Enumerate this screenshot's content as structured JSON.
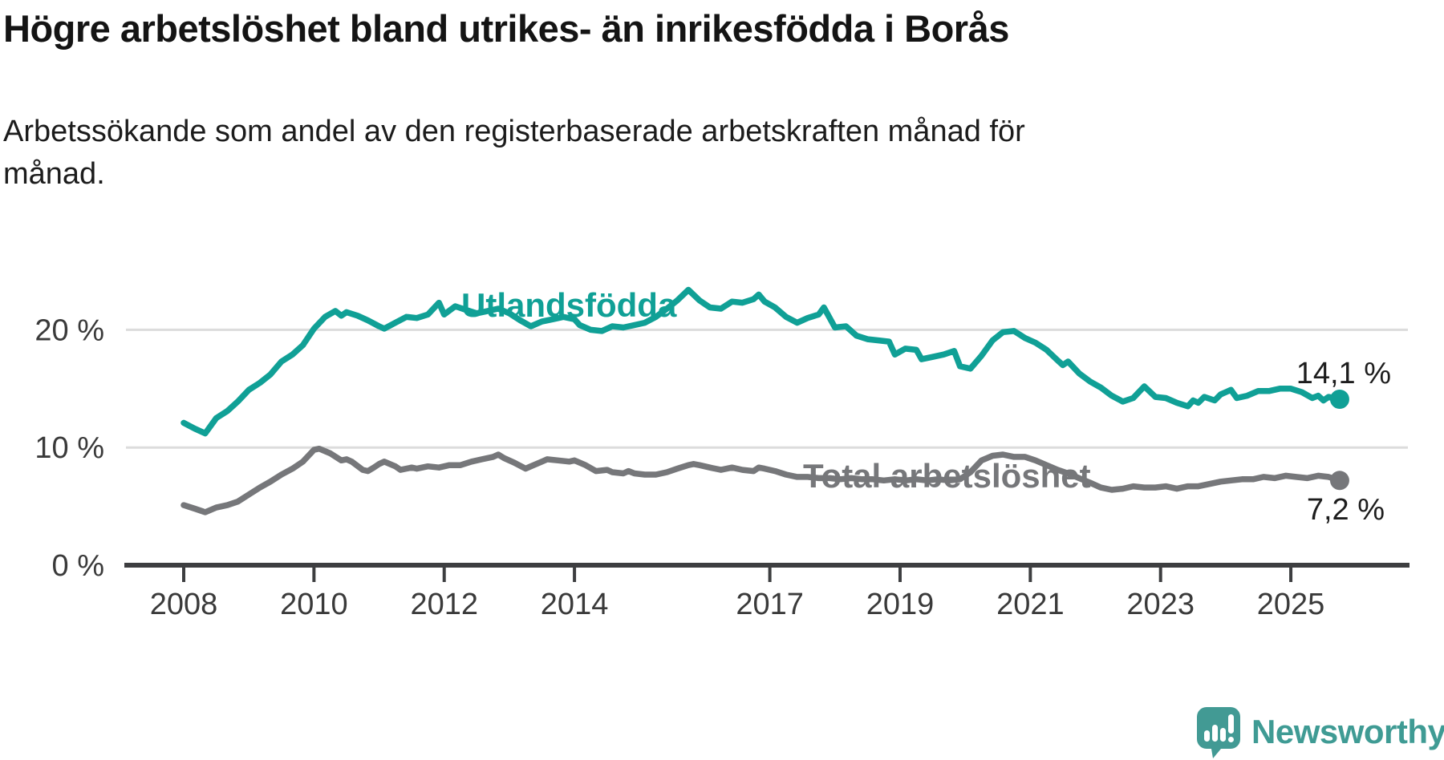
{
  "header": {
    "title": "Högre arbetslöshet bland utrikes- än inrikesfödda i Borås",
    "subtitle_lines": [
      "Arbetssökande som andel av den registerbaserade arbetskraften månad för",
      "månad."
    ]
  },
  "chart_data": {
    "type": "line",
    "title": "Högre arbetslöshet bland utrikes- än inrikesfödda i Borås",
    "subtitle": "Arbetssökande som andel av den registerbaserade arbetskraften månad för månad.",
    "grid": "horizontal",
    "legend": "inline-labels",
    "x_axis": {
      "ticks": [
        2008,
        2010,
        2012,
        2014,
        2017,
        2019,
        2021,
        2023,
        2025
      ],
      "range": [
        2007.1,
        2026.8
      ]
    },
    "y_axis": {
      "unit": "%",
      "range": [
        0,
        28
      ],
      "ticks": [
        {
          "value": 0,
          "label": "0 %"
        },
        {
          "value": 10,
          "label": "10 %"
        },
        {
          "value": 20,
          "label": "20 %"
        }
      ]
    },
    "series": [
      {
        "name": "Utlandsfödda",
        "color": "#10a096",
        "end_label": "14,1 %",
        "end_value": 14.1,
        "points": [
          [
            2008.0,
            12.1
          ],
          [
            2008.17,
            11.6
          ],
          [
            2008.33,
            11.2
          ],
          [
            2008.5,
            12.5
          ],
          [
            2008.67,
            13.1
          ],
          [
            2008.83,
            13.9
          ],
          [
            2009.0,
            14.9
          ],
          [
            2009.17,
            15.5
          ],
          [
            2009.33,
            16.2
          ],
          [
            2009.5,
            17.3
          ],
          [
            2009.67,
            17.9
          ],
          [
            2009.83,
            18.7
          ],
          [
            2010.0,
            20.1
          ],
          [
            2010.17,
            21.1
          ],
          [
            2010.33,
            21.6
          ],
          [
            2010.42,
            21.2
          ],
          [
            2010.5,
            21.5
          ],
          [
            2010.67,
            21.2
          ],
          [
            2010.83,
            20.8
          ],
          [
            2011.0,
            20.3
          ],
          [
            2011.08,
            20.1
          ],
          [
            2011.25,
            20.6
          ],
          [
            2011.42,
            21.1
          ],
          [
            2011.58,
            21.0
          ],
          [
            2011.75,
            21.3
          ],
          [
            2011.92,
            22.3
          ],
          [
            2012.0,
            21.3
          ],
          [
            2012.17,
            22.0
          ],
          [
            2012.33,
            21.7
          ],
          [
            2012.5,
            21.4
          ],
          [
            2012.67,
            21.6
          ],
          [
            2012.83,
            21.8
          ],
          [
            2013.0,
            21.4
          ],
          [
            2013.17,
            20.8
          ],
          [
            2013.33,
            20.3
          ],
          [
            2013.5,
            20.7
          ],
          [
            2013.67,
            20.9
          ],
          [
            2013.83,
            21.1
          ],
          [
            2014.0,
            20.9
          ],
          [
            2014.08,
            20.4
          ],
          [
            2014.25,
            20.0
          ],
          [
            2014.42,
            19.9
          ],
          [
            2014.58,
            20.3
          ],
          [
            2014.75,
            20.2
          ],
          [
            2014.92,
            20.4
          ],
          [
            2015.08,
            20.6
          ],
          [
            2015.25,
            21.1
          ],
          [
            2015.42,
            21.8
          ],
          [
            2015.58,
            22.5
          ],
          [
            2015.75,
            23.4
          ],
          [
            2015.92,
            22.5
          ],
          [
            2016.08,
            21.9
          ],
          [
            2016.25,
            21.8
          ],
          [
            2016.42,
            22.4
          ],
          [
            2016.58,
            22.3
          ],
          [
            2016.75,
            22.6
          ],
          [
            2016.83,
            23.0
          ],
          [
            2016.92,
            22.4
          ],
          [
            2017.08,
            21.9
          ],
          [
            2017.25,
            21.1
          ],
          [
            2017.42,
            20.6
          ],
          [
            2017.58,
            21.0
          ],
          [
            2017.75,
            21.3
          ],
          [
            2017.83,
            21.9
          ],
          [
            2017.92,
            21.0
          ],
          [
            2018.0,
            20.2
          ],
          [
            2018.17,
            20.3
          ],
          [
            2018.33,
            19.5
          ],
          [
            2018.5,
            19.2
          ],
          [
            2018.67,
            19.1
          ],
          [
            2018.83,
            19.0
          ],
          [
            2018.92,
            17.9
          ],
          [
            2019.08,
            18.4
          ],
          [
            2019.25,
            18.3
          ],
          [
            2019.33,
            17.5
          ],
          [
            2019.5,
            17.7
          ],
          [
            2019.67,
            17.9
          ],
          [
            2019.83,
            18.2
          ],
          [
            2019.92,
            16.9
          ],
          [
            2020.08,
            16.7
          ],
          [
            2020.25,
            17.8
          ],
          [
            2020.42,
            19.1
          ],
          [
            2020.58,
            19.8
          ],
          [
            2020.75,
            19.9
          ],
          [
            2020.92,
            19.3
          ],
          [
            2021.08,
            18.9
          ],
          [
            2021.25,
            18.3
          ],
          [
            2021.42,
            17.4
          ],
          [
            2021.5,
            17.0
          ],
          [
            2021.58,
            17.3
          ],
          [
            2021.75,
            16.3
          ],
          [
            2021.92,
            15.6
          ],
          [
            2022.08,
            15.1
          ],
          [
            2022.25,
            14.4
          ],
          [
            2022.42,
            13.9
          ],
          [
            2022.58,
            14.2
          ],
          [
            2022.75,
            15.2
          ],
          [
            2022.92,
            14.3
          ],
          [
            2023.08,
            14.2
          ],
          [
            2023.25,
            13.8
          ],
          [
            2023.42,
            13.5
          ],
          [
            2023.5,
            14.0
          ],
          [
            2023.58,
            13.8
          ],
          [
            2023.67,
            14.3
          ],
          [
            2023.83,
            14.0
          ],
          [
            2023.92,
            14.5
          ],
          [
            2024.08,
            14.9
          ],
          [
            2024.17,
            14.2
          ],
          [
            2024.33,
            14.4
          ],
          [
            2024.5,
            14.8
          ],
          [
            2024.67,
            14.8
          ],
          [
            2024.83,
            15.0
          ],
          [
            2025.0,
            15.0
          ],
          [
            2025.17,
            14.7
          ],
          [
            2025.33,
            14.2
          ],
          [
            2025.42,
            14.4
          ],
          [
            2025.5,
            14.0
          ],
          [
            2025.58,
            14.3
          ],
          [
            2025.75,
            14.1
          ]
        ]
      },
      {
        "name": "Total arbetslöshet",
        "color": "#76777a",
        "end_label": "7,2 %",
        "end_value": 7.2,
        "points": [
          [
            2008.0,
            5.1
          ],
          [
            2008.17,
            4.8
          ],
          [
            2008.33,
            4.5
          ],
          [
            2008.5,
            4.9
          ],
          [
            2008.67,
            5.1
          ],
          [
            2008.83,
            5.4
          ],
          [
            2009.0,
            6.0
          ],
          [
            2009.17,
            6.6
          ],
          [
            2009.33,
            7.1
          ],
          [
            2009.5,
            7.7
          ],
          [
            2009.67,
            8.2
          ],
          [
            2009.83,
            8.8
          ],
          [
            2010.0,
            9.8
          ],
          [
            2010.08,
            9.9
          ],
          [
            2010.25,
            9.5
          ],
          [
            2010.42,
            8.9
          ],
          [
            2010.5,
            9.0
          ],
          [
            2010.58,
            8.8
          ],
          [
            2010.75,
            8.1
          ],
          [
            2010.83,
            8.0
          ],
          [
            2010.92,
            8.3
          ],
          [
            2011.0,
            8.6
          ],
          [
            2011.08,
            8.8
          ],
          [
            2011.25,
            8.4
          ],
          [
            2011.33,
            8.1
          ],
          [
            2011.5,
            8.3
          ],
          [
            2011.58,
            8.2
          ],
          [
            2011.75,
            8.4
          ],
          [
            2011.92,
            8.3
          ],
          [
            2012.08,
            8.5
          ],
          [
            2012.25,
            8.5
          ],
          [
            2012.42,
            8.8
          ],
          [
            2012.58,
            9.0
          ],
          [
            2012.75,
            9.2
          ],
          [
            2012.83,
            9.4
          ],
          [
            2012.92,
            9.1
          ],
          [
            2013.08,
            8.7
          ],
          [
            2013.25,
            8.2
          ],
          [
            2013.33,
            8.4
          ],
          [
            2013.5,
            8.8
          ],
          [
            2013.58,
            9.0
          ],
          [
            2013.75,
            8.9
          ],
          [
            2013.92,
            8.8
          ],
          [
            2014.0,
            8.9
          ],
          [
            2014.17,
            8.5
          ],
          [
            2014.33,
            8.0
          ],
          [
            2014.5,
            8.1
          ],
          [
            2014.58,
            7.9
          ],
          [
            2014.75,
            7.8
          ],
          [
            2014.83,
            8.0
          ],
          [
            2014.92,
            7.8
          ],
          [
            2015.08,
            7.7
          ],
          [
            2015.25,
            7.7
          ],
          [
            2015.42,
            7.9
          ],
          [
            2015.58,
            8.2
          ],
          [
            2015.75,
            8.5
          ],
          [
            2015.83,
            8.6
          ],
          [
            2015.92,
            8.5
          ],
          [
            2016.08,
            8.3
          ],
          [
            2016.25,
            8.1
          ],
          [
            2016.42,
            8.3
          ],
          [
            2016.58,
            8.1
          ],
          [
            2016.75,
            8.0
          ],
          [
            2016.83,
            8.3
          ],
          [
            2016.92,
            8.2
          ],
          [
            2017.08,
            8.0
          ],
          [
            2017.25,
            7.7
          ],
          [
            2017.42,
            7.5
          ],
          [
            2017.58,
            7.5
          ],
          [
            2017.75,
            7.4
          ],
          [
            2017.92,
            7.4
          ],
          [
            2018.08,
            7.3
          ],
          [
            2018.25,
            7.4
          ],
          [
            2018.42,
            7.3
          ],
          [
            2018.58,
            7.3
          ],
          [
            2018.75,
            7.2
          ],
          [
            2018.92,
            7.3
          ],
          [
            2019.08,
            7.2
          ],
          [
            2019.25,
            7.3
          ],
          [
            2019.42,
            7.2
          ],
          [
            2019.58,
            7.3
          ],
          [
            2019.75,
            7.2
          ],
          [
            2019.92,
            7.3
          ],
          [
            2020.08,
            7.9
          ],
          [
            2020.25,
            8.9
          ],
          [
            2020.42,
            9.3
          ],
          [
            2020.58,
            9.4
          ],
          [
            2020.75,
            9.2
          ],
          [
            2020.92,
            9.2
          ],
          [
            2021.08,
            8.9
          ],
          [
            2021.25,
            8.5
          ],
          [
            2021.42,
            8.1
          ],
          [
            2021.58,
            7.8
          ],
          [
            2021.75,
            7.4
          ],
          [
            2021.92,
            7.0
          ],
          [
            2022.08,
            6.6
          ],
          [
            2022.25,
            6.4
          ],
          [
            2022.42,
            6.5
          ],
          [
            2022.58,
            6.7
          ],
          [
            2022.75,
            6.6
          ],
          [
            2022.92,
            6.6
          ],
          [
            2023.08,
            6.7
          ],
          [
            2023.25,
            6.5
          ],
          [
            2023.42,
            6.7
          ],
          [
            2023.58,
            6.7
          ],
          [
            2023.75,
            6.9
          ],
          [
            2023.92,
            7.1
          ],
          [
            2024.08,
            7.2
          ],
          [
            2024.25,
            7.3
          ],
          [
            2024.42,
            7.3
          ],
          [
            2024.58,
            7.5
          ],
          [
            2024.75,
            7.4
          ],
          [
            2024.92,
            7.6
          ],
          [
            2025.08,
            7.5
          ],
          [
            2025.25,
            7.4
          ],
          [
            2025.42,
            7.6
          ],
          [
            2025.58,
            7.5
          ],
          [
            2025.75,
            7.2
          ]
        ]
      }
    ],
    "style": {
      "grid_color": "#dcdcdc",
      "axis_color": "#3d3e40",
      "tick_label_color": "#3a3a3a"
    }
  },
  "branding": {
    "name": "Newsworthy",
    "color": "#3f9b94",
    "icon": "newsworthy-speech-bubble-chart-logo"
  }
}
